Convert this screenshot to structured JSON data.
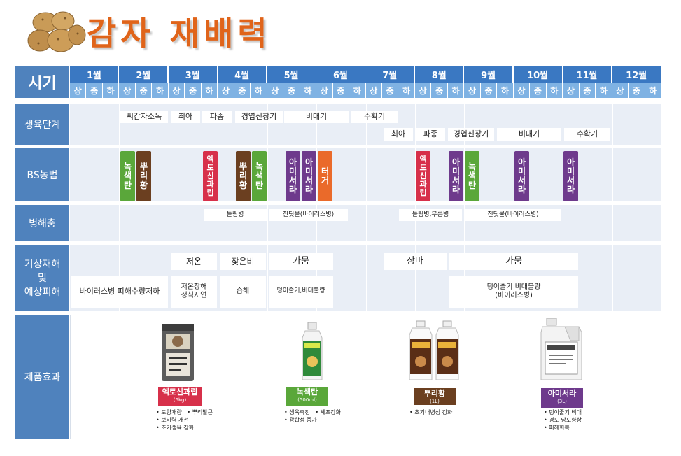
{
  "title": "감자 재배력",
  "row_labels": {
    "period": "시기",
    "growth": "생육단계",
    "bs": "BS농법",
    "pest": "병해충",
    "weather_1": "기상재해",
    "weather_2": "및",
    "weather_3": "예상피해",
    "product": "제품효과"
  },
  "months": [
    "1월",
    "2월",
    "3월",
    "4월",
    "5월",
    "6월",
    "7월",
    "8월",
    "9월",
    "10월",
    "11월",
    "12월"
  ],
  "subdivs": [
    "상",
    "중",
    "하"
  ],
  "growth_stages": {
    "s1": "씨감자소독",
    "s2": "최아",
    "s3": "파종",
    "s4": "경엽신장기",
    "s5": "비대기",
    "s6": "수확기",
    "a1": "최아",
    "a2": "파종",
    "a3": "경엽신장기",
    "a4": "비대기",
    "a5": "수확기"
  },
  "bs_tags": {
    "t1": [
      "녹",
      "색",
      "탄"
    ],
    "t2": [
      "뿌",
      "리",
      "황"
    ],
    "t3": [
      "엑",
      "토",
      "신",
      "과",
      "립"
    ],
    "t4": [
      "뿌",
      "리",
      "황"
    ],
    "t5": [
      "녹",
      "색",
      "탄"
    ],
    "t6": [
      "아",
      "미",
      "서",
      "라"
    ],
    "t7": [
      "아",
      "미",
      "서",
      "라"
    ],
    "t8": [
      "터",
      "거"
    ],
    "t9": [
      "엑",
      "토",
      "신",
      "과",
      "립"
    ],
    "t10": [
      "아",
      "미",
      "서",
      "라"
    ],
    "t11": [
      "녹",
      "색",
      "탄"
    ],
    "t12": [
      "아",
      "미",
      "서",
      "라"
    ],
    "t13": [
      "아",
      "미",
      "서",
      "라"
    ]
  },
  "pests": {
    "p1": "돌림병",
    "p2": "진딧물(바이러스병)",
    "p3": "돌림병,무름병",
    "p4": "진딧물(바이러스병)"
  },
  "weather": {
    "w1": "저온",
    "w2": "잦은비",
    "w3": "가뭄",
    "w4": "장마",
    "w5": "가뭄",
    "d1": "바이러스병  피해수량저하",
    "d2_1": "저온장해",
    "d2_2": "정식지연",
    "d3": "습해",
    "d4": "덩이줄기,비대불량",
    "d5_1": "덩이줄기 비대불량",
    "d5_2": "(바이러스병)"
  },
  "products": [
    {
      "name": "엑토신과립",
      "size": "(6kg)",
      "effects": "• 토양개량   • 뿌리발근\n• 보비력 개선\n• 초기생육 강화"
    },
    {
      "name": "녹색탄",
      "size": "(500ml)",
      "effects": "• 생육촉진   • 세포강화\n• 광합성 증가"
    },
    {
      "name": "뿌리황",
      "size": "(1L)",
      "effects": "• 초기내병성 강화"
    },
    {
      "name": "아미서라",
      "size": "(3L)",
      "effects": "• 덩이줄기 비대\n• 경도 당도향상\n• 피해회복"
    }
  ],
  "colors": {
    "header": "#3a78c2",
    "label": "#4f82bd",
    "green": "#5aa73a",
    "brown": "#6b3f20",
    "pink": "#d7304a",
    "purple": "#6e3a8c",
    "orange": "#ea6a2a",
    "title": "#e0641a"
  }
}
